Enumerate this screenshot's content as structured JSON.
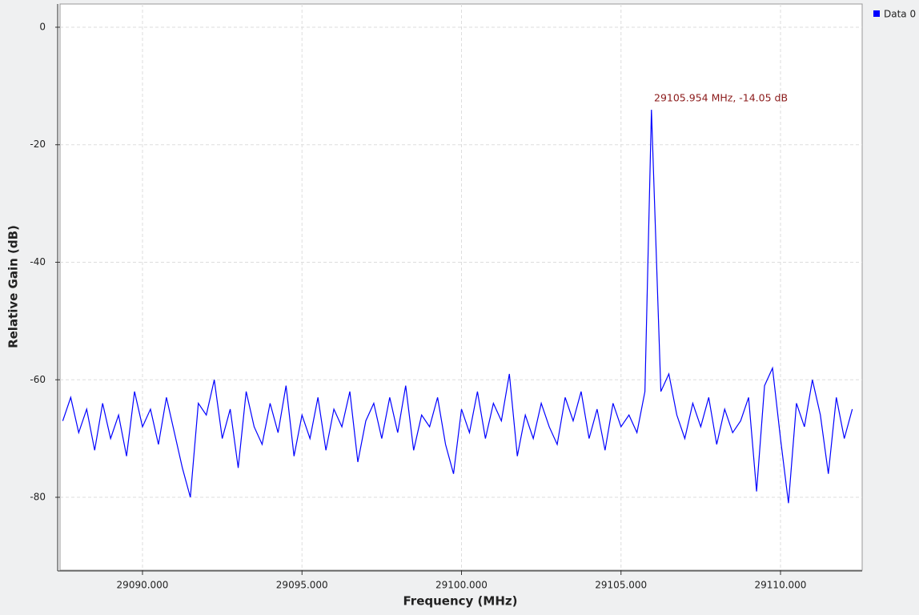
{
  "chart_data": {
    "type": "line",
    "xlabel": "Frequency (MHz)",
    "ylabel": "Relative Gain (dB)",
    "annotation": "29105.954 MHz, -14.05 dB",
    "x": [
      29087.5,
      29087.75,
      29088,
      29088.25,
      29088.5,
      29088.75,
      29089,
      29089.25,
      29089.5,
      29089.75,
      29090,
      29090.25,
      29090.5,
      29090.75,
      29091,
      29091.25,
      29091.5,
      29091.75,
      29092,
      29092.25,
      29092.5,
      29092.75,
      29093,
      29093.25,
      29093.5,
      29093.75,
      29094,
      29094.25,
      29094.5,
      29094.75,
      29095,
      29095.25,
      29095.5,
      29095.75,
      29096,
      29096.25,
      29096.5,
      29096.75,
      29097,
      29097.25,
      29097.5,
      29097.75,
      29098,
      29098.25,
      29098.5,
      29098.75,
      29099,
      29099.25,
      29099.5,
      29099.75,
      29100,
      29100.25,
      29100.5,
      29100.75,
      29101,
      29101.25,
      29101.5,
      29101.75,
      29102,
      29102.25,
      29102.5,
      29102.75,
      29103,
      29103.25,
      29103.5,
      29103.75,
      29104,
      29104.25,
      29104.5,
      29104.75,
      29105,
      29105.25,
      29105.5,
      29105.75,
      29105.954,
      29106.25,
      29106.5,
      29106.75,
      29107,
      29107.25,
      29107.5,
      29107.75,
      29108,
      29108.25,
      29108.5,
      29108.75,
      29109,
      29109.25,
      29109.5,
      29109.75,
      29110,
      29110.25,
      29110.5,
      29110.75,
      29111,
      29111.25,
      29111.5,
      29111.75,
      29112,
      29112.25
    ],
    "series": [
      {
        "name": "Data 0",
        "color": "#0000ff",
        "values": [
          -67,
          -63,
          -69,
          -65,
          -72,
          -64,
          -70,
          -66,
          -73,
          -62,
          -68,
          -65,
          -71,
          -63,
          -69,
          -75,
          -80,
          -64,
          -66,
          -60,
          -70,
          -65,
          -75,
          -62,
          -68,
          -71,
          -64,
          -69,
          -61,
          -73,
          -66,
          -70,
          -63,
          -72,
          -65,
          -68,
          -62,
          -74,
          -67,
          -64,
          -70,
          -63,
          -69,
          -61,
          -72,
          -66,
          -68,
          -63,
          -71,
          -76,
          -65,
          -69,
          -62,
          -70,
          -64,
          -67,
          -59,
          -73,
          -66,
          -70,
          -64,
          -68,
          -71,
          -63,
          -67,
          -62,
          -70,
          -65,
          -72,
          -64,
          -68,
          -66,
          -69,
          -62,
          -14.05,
          -62,
          -59,
          -66,
          -70,
          -64,
          -68,
          -63,
          -71,
          -65,
          -69,
          -67,
          -63,
          -79,
          -61,
          -58,
          -70,
          -81,
          -64,
          -68,
          -60,
          -66,
          -76,
          -63,
          -70,
          -65
        ]
      }
    ],
    "xlim": [
      29087.415,
      29112.56
    ],
    "ylim": [
      -92.4,
      3.95
    ],
    "xticks": [
      {
        "value": 29090,
        "label": "29090.000"
      },
      {
        "value": 29095,
        "label": "29095.000"
      },
      {
        "value": 29100,
        "label": "29100.000"
      },
      {
        "value": 29105,
        "label": "29105.000"
      },
      {
        "value": 29110,
        "label": "29110.000"
      }
    ],
    "yticks": [
      0,
      -20,
      -40,
      -60,
      -80
    ],
    "grid": true
  }
}
